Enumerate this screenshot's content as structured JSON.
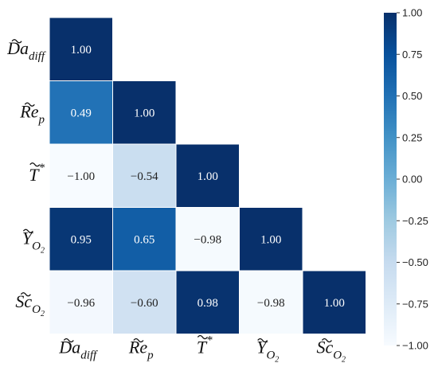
{
  "chart_data": {
    "type": "heatmap",
    "title": "",
    "layout": "lower-triangle",
    "variables": [
      {
        "base": "Da",
        "tilde": true,
        "sub": "diff",
        "sup": ""
      },
      {
        "base": "Re",
        "tilde": true,
        "sub": "p",
        "sup": ""
      },
      {
        "base": "T",
        "tilde": true,
        "sub": "",
        "sup": "*"
      },
      {
        "base": "Y",
        "tilde": true,
        "sub": "O",
        "subsub": "2",
        "sup": ""
      },
      {
        "base": "Sc",
        "tilde": true,
        "sub": "O",
        "subsub": "2",
        "sup": ""
      }
    ],
    "matrix": [
      [
        1.0,
        null,
        null,
        null,
        null
      ],
      [
        0.49,
        1.0,
        null,
        null,
        null
      ],
      [
        -1.0,
        -0.54,
        1.0,
        null,
        null
      ],
      [
        0.95,
        0.65,
        -0.98,
        1.0,
        null
      ],
      [
        -0.96,
        -0.6,
        0.98,
        -0.98,
        1.0
      ]
    ],
    "cell_labels": [
      [
        "1.00",
        "",
        "",
        "",
        ""
      ],
      [
        "0.49",
        "1.00",
        "",
        "",
        ""
      ],
      [
        "−1.00",
        "−0.54",
        "1.00",
        "",
        ""
      ],
      [
        "0.95",
        "0.65",
        "−0.98",
        "1.00",
        ""
      ],
      [
        "−0.96",
        "−0.60",
        "0.98",
        "−0.98",
        "1.00"
      ]
    ],
    "colorbar": {
      "vmin": -1.0,
      "vmax": 1.0,
      "ticks": [
        1.0,
        0.75,
        0.5,
        0.25,
        0.0,
        -0.25,
        -0.5,
        -0.75,
        -1.0
      ],
      "tick_labels": [
        "1.00",
        "0.75",
        "0.50",
        "0.25",
        "0.00",
        "−0.25",
        "−0.50",
        "−0.75",
        "−1.00"
      ],
      "colormap": "Blues",
      "color_low": "#f7fbff",
      "color_high": "#08306b"
    },
    "text_color_light": "#ffffff",
    "text_color_dark": "#222222"
  }
}
